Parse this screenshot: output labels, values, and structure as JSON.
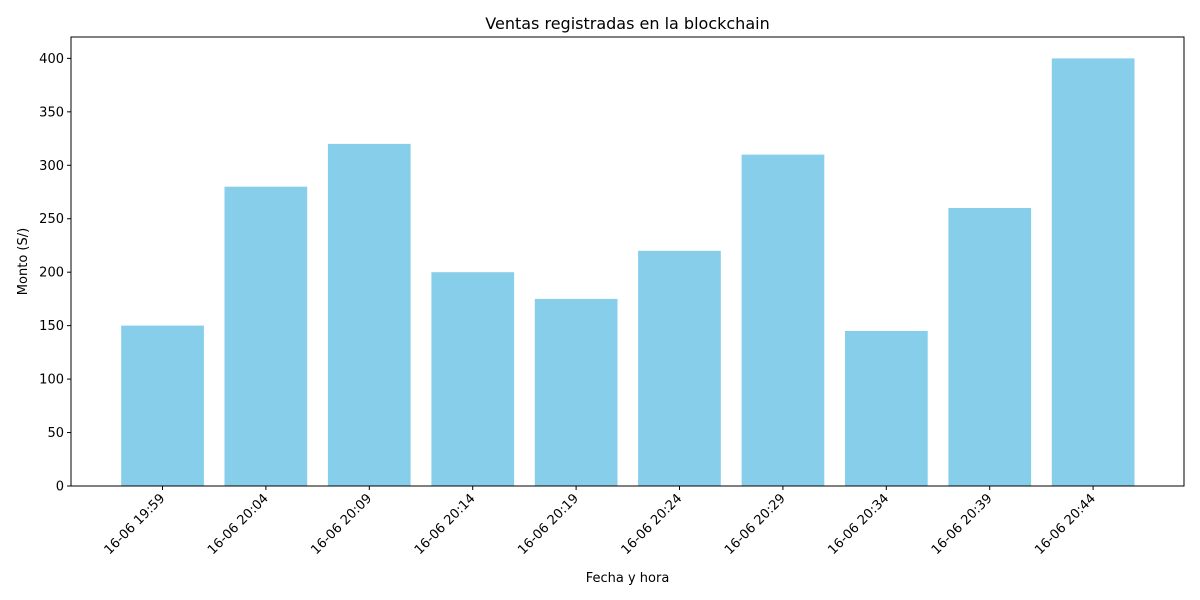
{
  "chart_data": {
    "type": "bar",
    "title": "Ventas registradas en la blockchain",
    "xlabel": "Fecha y hora",
    "ylabel": "Monto (S/)",
    "categories": [
      "16-06 19:59",
      "16-06 20:04",
      "16-06 20:09",
      "16-06 20:14",
      "16-06 20:19",
      "16-06 20:24",
      "16-06 20:29",
      "16-06 20:34",
      "16-06 20:39",
      "16-06 20:44"
    ],
    "values": [
      150,
      280,
      320,
      200,
      175,
      220,
      310,
      145,
      260,
      400
    ],
    "ylim": [
      0,
      420
    ],
    "yticks": [
      0,
      50,
      100,
      150,
      200,
      250,
      300,
      350,
      400
    ],
    "bar_color": "#87CEEB",
    "grid": false,
    "legend": "none"
  }
}
